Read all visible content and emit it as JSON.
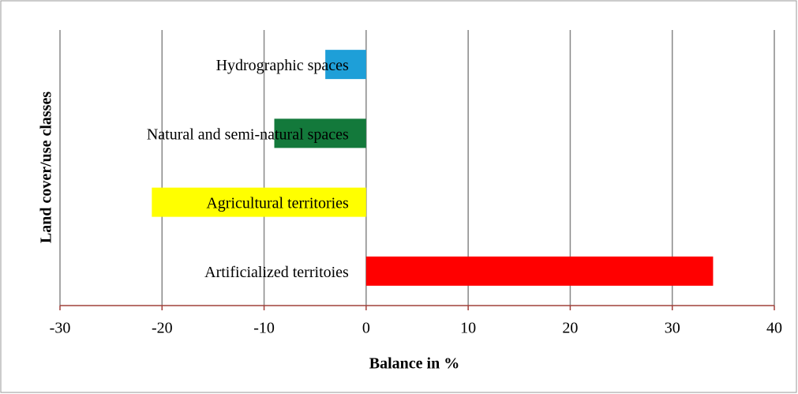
{
  "chart_data": {
    "type": "barh",
    "categories": [
      "Hydrographic spaces",
      "Natural and semi-natural spaces",
      "Agricultural territories",
      "Artificialized territoies"
    ],
    "values": [
      -4,
      -9,
      -21,
      34
    ],
    "colors": [
      "#1e9fd8",
      "#13793b",
      "#ffff00",
      "#ff0000"
    ],
    "xlabel": "Balance in %",
    "ylabel": "Land cover/use classes",
    "xlim": [
      -30,
      40
    ],
    "xticks": [
      -30,
      -20,
      -10,
      0,
      10,
      20,
      30,
      40
    ],
    "grid": true
  }
}
